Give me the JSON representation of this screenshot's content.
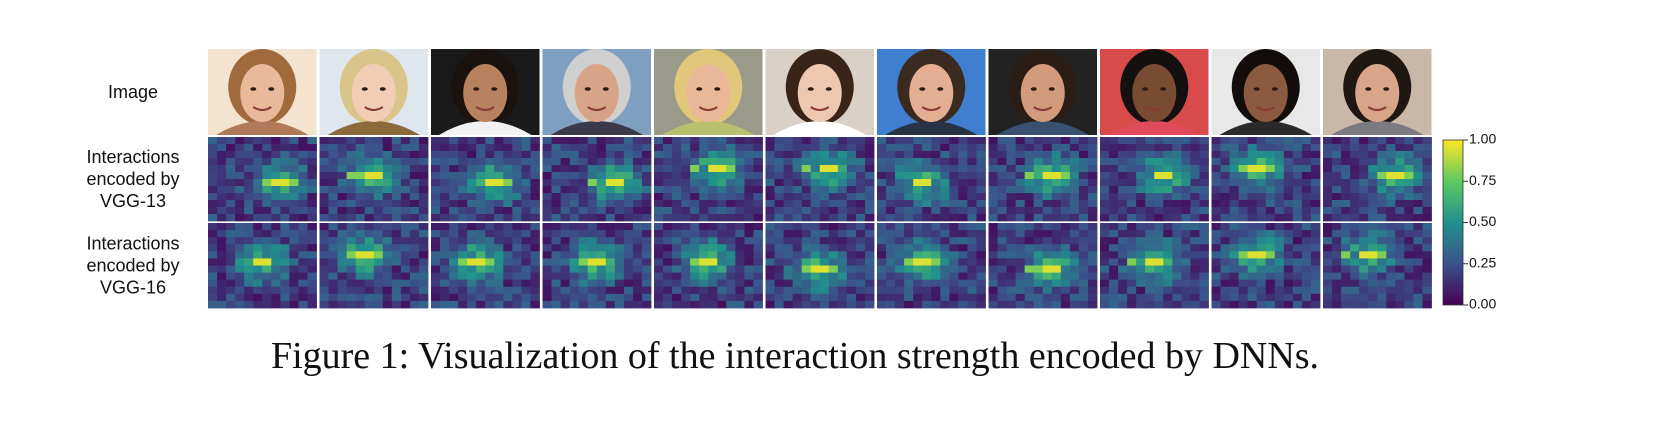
{
  "figure": {
    "rows": [
      {
        "label_lines": [
          "Image"
        ]
      },
      {
        "label_lines": [
          "Interactions",
          "encoded by",
          "VGG-13"
        ]
      },
      {
        "label_lines": [
          "Interactions",
          "encoded by",
          "VGG-16"
        ]
      }
    ],
    "colorbar": {
      "lim": [
        0,
        1
      ],
      "ticks": [
        {
          "value": 0,
          "label": "0.00"
        },
        {
          "value": 0.25,
          "label": "0.25"
        },
        {
          "value": 0.5,
          "label": "0.50"
        },
        {
          "value": 0.75,
          "label": "0.75"
        },
        {
          "value": 1,
          "label": "1.00"
        }
      ]
    },
    "caption": "Figure 1: Visualization of the interaction strength encoded by DNNs."
  }
}
